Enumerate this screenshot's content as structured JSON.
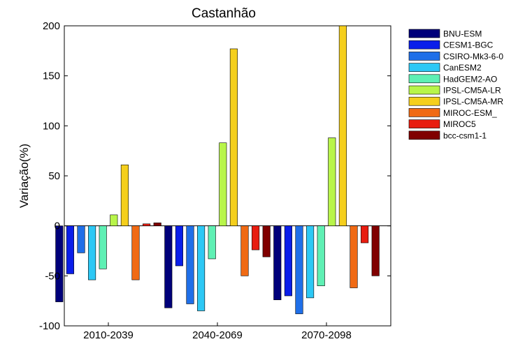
{
  "chart_data": {
    "type": "bar",
    "title": "Castanhão",
    "xlabel": "",
    "ylabel": "Variação(%)",
    "ylim": [
      -100,
      200
    ],
    "yticks": [
      -100,
      -50,
      0,
      50,
      100,
      150,
      200
    ],
    "grid": false,
    "legend_position": "right",
    "categories": [
      "2010-2039",
      "2040-2069",
      "2070-2098"
    ],
    "series": [
      {
        "name": "BNU-ESM",
        "color": "#00007a",
        "values": [
          -76,
          -82,
          -74
        ]
      },
      {
        "name": "CESM1-BGC",
        "color": "#0a1eea",
        "values": [
          -48,
          -40,
          -70
        ]
      },
      {
        "name": "CSIRO-Mk3-6-0",
        "color": "#1f6fe8",
        "values": [
          -27,
          -78,
          -88
        ]
      },
      {
        "name": "CanESM2",
        "color": "#2dc8f5",
        "values": [
          -54,
          -85,
          -72
        ]
      },
      {
        "name": "HadGEM2-AO",
        "color": "#5ff0b4",
        "values": [
          -43,
          -33,
          -60
        ]
      },
      {
        "name": "IPSL-CM5A-LR",
        "color": "#b8f54a",
        "values": [
          11,
          83,
          88
        ]
      },
      {
        "name": "IPSL-CM5A-MR",
        "color": "#f5cf1c",
        "values": [
          61,
          177,
          200
        ]
      },
      {
        "name": "MIROC-ESM_",
        "color": "#f06a14",
        "values": [
          -54,
          -50,
          -62
        ]
      },
      {
        "name": "MIROC5",
        "color": "#e81d10",
        "values": [
          2,
          -24,
          -17
        ]
      },
      {
        "name": "bcc-csm1-1",
        "color": "#800000",
        "values": [
          3,
          -31,
          -50
        ]
      }
    ]
  }
}
